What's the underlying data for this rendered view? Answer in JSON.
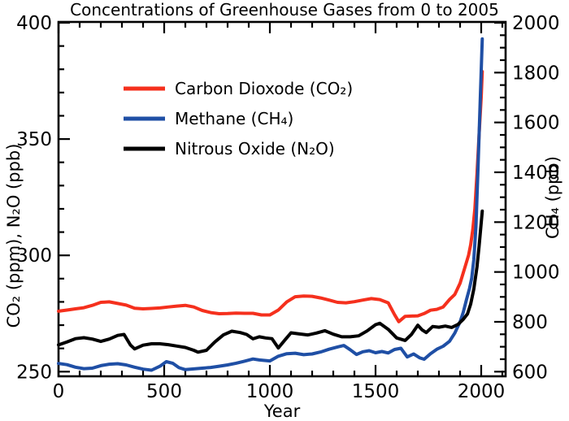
{
  "chart_data": {
    "type": "line",
    "title": "Concentrations of Greenhouse Gases from 0 to 2005",
    "xlabel": "Year",
    "ylabel_left": "CO₂ (ppm), N₂O (ppb)",
    "ylabel_right": "CH₄ (ppb)",
    "x_axis": {
      "range": [
        0,
        2115
      ],
      "major_ticks": [
        0,
        500,
        1000,
        1500,
        2000
      ],
      "minor_step": 100
    },
    "left_axis": {
      "unit": "ppm (CO2) / ppb (N2O)",
      "range": [
        248,
        400
      ],
      "major_ticks": [
        250,
        300,
        350,
        400
      ],
      "minor_step": 10
    },
    "right_axis": {
      "unit": "ppb (CH4)",
      "range": [
        580,
        2003
      ],
      "major_ticks": [
        600,
        800,
        1000,
        1200,
        1400,
        1600,
        1800,
        2000
      ],
      "minor_step": 50
    },
    "grid": false,
    "legend_position": "upper-left",
    "colors": {
      "co2": "#f5301d",
      "ch4": "#1f4fa5",
      "n2o": "#000000"
    },
    "legend": [
      {
        "label": "Carbon Dioxode (CO₂)",
        "series": "co2"
      },
      {
        "label": "Methane (CH₄)",
        "series": "ch4"
      },
      {
        "label": "Nitrous Oxide (N₂O)",
        "series": "n2o"
      }
    ],
    "series": [
      {
        "name": "co2",
        "axis": "left",
        "unit": "ppm",
        "points": [
          [
            0,
            276
          ],
          [
            40,
            276.5
          ],
          [
            80,
            277
          ],
          [
            120,
            277.5
          ],
          [
            160,
            278.5
          ],
          [
            200,
            279.8
          ],
          [
            240,
            280
          ],
          [
            280,
            279.3
          ],
          [
            320,
            278.6
          ],
          [
            360,
            277.3
          ],
          [
            400,
            277
          ],
          [
            440,
            277.2
          ],
          [
            480,
            277.4
          ],
          [
            520,
            277.8
          ],
          [
            560,
            278.2
          ],
          [
            600,
            278.5
          ],
          [
            640,
            277.8
          ],
          [
            680,
            276.3
          ],
          [
            720,
            275.4
          ],
          [
            760,
            274.9
          ],
          [
            800,
            275
          ],
          [
            840,
            275.2
          ],
          [
            880,
            275.1
          ],
          [
            920,
            275.1
          ],
          [
            960,
            274.4
          ],
          [
            1000,
            274.4
          ],
          [
            1040,
            276.5
          ],
          [
            1080,
            280
          ],
          [
            1120,
            282.2
          ],
          [
            1160,
            282.5
          ],
          [
            1200,
            282.4
          ],
          [
            1240,
            281.7
          ],
          [
            1280,
            280.8
          ],
          [
            1320,
            279.8
          ],
          [
            1360,
            279.6
          ],
          [
            1400,
            280.1
          ],
          [
            1440,
            280.8
          ],
          [
            1480,
            281.4
          ],
          [
            1520,
            281
          ],
          [
            1560,
            279.6
          ],
          [
            1590,
            274.5
          ],
          [
            1610,
            271.5
          ],
          [
            1640,
            273.8
          ],
          [
            1670,
            273.9
          ],
          [
            1700,
            274
          ],
          [
            1730,
            275
          ],
          [
            1760,
            276.4
          ],
          [
            1790,
            276.8
          ],
          [
            1820,
            277.8
          ],
          [
            1850,
            281
          ],
          [
            1875,
            283.2
          ],
          [
            1900,
            288
          ],
          [
            1920,
            294
          ],
          [
            1940,
            300
          ],
          [
            1950,
            304.5
          ],
          [
            1960,
            311
          ],
          [
            1970,
            320
          ],
          [
            1980,
            335
          ],
          [
            1990,
            352
          ],
          [
            2000,
            368
          ],
          [
            2005,
            379
          ]
        ]
      },
      {
        "name": "ch4",
        "axis": "right",
        "unit": "ppb",
        "points": [
          [
            0,
            633
          ],
          [
            40,
            628
          ],
          [
            80,
            618
          ],
          [
            120,
            612
          ],
          [
            160,
            614
          ],
          [
            200,
            624
          ],
          [
            240,
            630
          ],
          [
            280,
            632
          ],
          [
            320,
            627
          ],
          [
            360,
            618
          ],
          [
            400,
            610
          ],
          [
            440,
            606
          ],
          [
            480,
            622
          ],
          [
            510,
            640
          ],
          [
            540,
            634
          ],
          [
            570,
            616
          ],
          [
            600,
            608
          ],
          [
            640,
            611
          ],
          [
            680,
            614
          ],
          [
            720,
            617
          ],
          [
            760,
            622
          ],
          [
            800,
            627
          ],
          [
            840,
            634
          ],
          [
            880,
            642
          ],
          [
            920,
            651
          ],
          [
            950,
            647
          ],
          [
            1000,
            643
          ],
          [
            1040,
            662
          ],
          [
            1080,
            672
          ],
          [
            1120,
            674
          ],
          [
            1160,
            668
          ],
          [
            1200,
            671
          ],
          [
            1240,
            679
          ],
          [
            1280,
            690
          ],
          [
            1320,
            699
          ],
          [
            1350,
            705
          ],
          [
            1380,
            688
          ],
          [
            1410,
            669
          ],
          [
            1440,
            680
          ],
          [
            1470,
            684
          ],
          [
            1500,
            676
          ],
          [
            1530,
            681
          ],
          [
            1560,
            675
          ],
          [
            1590,
            689
          ],
          [
            1620,
            694
          ],
          [
            1650,
            659
          ],
          [
            1680,
            671
          ],
          [
            1710,
            655
          ],
          [
            1730,
            650
          ],
          [
            1760,
            672
          ],
          [
            1790,
            690
          ],
          [
            1820,
            702
          ],
          [
            1850,
            722
          ],
          [
            1875,
            755
          ],
          [
            1900,
            800
          ],
          [
            1915,
            838
          ],
          [
            1930,
            888
          ],
          [
            1945,
            935
          ],
          [
            1955,
            975
          ],
          [
            1965,
            1050
          ],
          [
            1975,
            1180
          ],
          [
            1985,
            1420
          ],
          [
            1995,
            1680
          ],
          [
            2005,
            1935
          ]
        ]
      },
      {
        "name": "n2o",
        "axis": "left",
        "unit": "ppb",
        "points": [
          [
            0,
            261.5
          ],
          [
            40,
            262.8
          ],
          [
            80,
            264.2
          ],
          [
            120,
            264.6
          ],
          [
            160,
            264
          ],
          [
            200,
            263
          ],
          [
            240,
            264
          ],
          [
            280,
            265.6
          ],
          [
            310,
            266
          ],
          [
            340,
            261.5
          ],
          [
            360,
            259.8
          ],
          [
            400,
            261.4
          ],
          [
            440,
            262
          ],
          [
            480,
            262
          ],
          [
            520,
            261.6
          ],
          [
            560,
            261
          ],
          [
            600,
            260.4
          ],
          [
            640,
            259.2
          ],
          [
            660,
            258.4
          ],
          [
            700,
            259.2
          ],
          [
            740,
            262.8
          ],
          [
            780,
            265.8
          ],
          [
            820,
            267.4
          ],
          [
            860,
            266.8
          ],
          [
            890,
            266
          ],
          [
            920,
            264.1
          ],
          [
            950,
            265
          ],
          [
            980,
            264.5
          ],
          [
            1010,
            264.2
          ],
          [
            1040,
            260.2
          ],
          [
            1070,
            263.5
          ],
          [
            1100,
            266.7
          ],
          [
            1140,
            266.2
          ],
          [
            1180,
            265.8
          ],
          [
            1220,
            266.6
          ],
          [
            1260,
            267.6
          ],
          [
            1300,
            266.1
          ],
          [
            1340,
            265
          ],
          [
            1380,
            265
          ],
          [
            1420,
            265.4
          ],
          [
            1460,
            267.5
          ],
          [
            1500,
            270.2
          ],
          [
            1520,
            270.8
          ],
          [
            1560,
            268.2
          ],
          [
            1600,
            264.5
          ],
          [
            1640,
            263.4
          ],
          [
            1670,
            266
          ],
          [
            1700,
            270
          ],
          [
            1720,
            268
          ],
          [
            1740,
            266.8
          ],
          [
            1770,
            269.4
          ],
          [
            1800,
            269.1
          ],
          [
            1830,
            269.6
          ],
          [
            1860,
            269
          ],
          [
            1890,
            270.3
          ],
          [
            1915,
            272.5
          ],
          [
            1935,
            274.8
          ],
          [
            1950,
            279
          ],
          [
            1965,
            285.5
          ],
          [
            1980,
            295
          ],
          [
            1990,
            304
          ],
          [
            2005,
            319
          ]
        ]
      }
    ]
  }
}
